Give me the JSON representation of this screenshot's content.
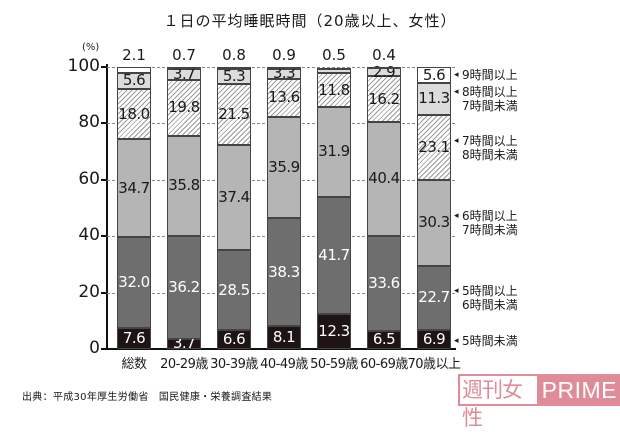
{
  "chart_data": {
    "type": "bar",
    "stacked": true,
    "title": "１日の平均睡眠時間（20歳以上、女性）",
    "unit_label": "(%)",
    "ylabel": "%",
    "xlabel": "",
    "ylim": [
      0,
      100
    ],
    "yticks": [
      "0",
      "20",
      "40",
      "60",
      "80",
      "100"
    ],
    "grid": true,
    "legend_position": "right",
    "categories": [
      "総数",
      "20-29歳",
      "30-39歳",
      "40-49歳",
      "50-59歳",
      "60-69歳",
      "70歳以上"
    ],
    "series": [
      {
        "name": "5時間未満",
        "legend_lines": [
          "5時間未満"
        ],
        "color": "#1e1414",
        "values": [
          7.6,
          3.7,
          6.6,
          8.1,
          12.3,
          6.5,
          6.9
        ]
      },
      {
        "name": "5時間以上6時間未満",
        "legend_lines": [
          "5時間以上",
          "6時間未満"
        ],
        "color": "#6e6e6e",
        "values": [
          32.0,
          36.2,
          28.5,
          38.3,
          41.7,
          33.6,
          22.7
        ]
      },
      {
        "name": "6時間以上7時間未満",
        "legend_lines": [
          "6時間以上",
          "7時間未満"
        ],
        "color": "#b5b5b5",
        "values": [
          34.7,
          35.8,
          37.4,
          35.9,
          31.9,
          40.4,
          30.3
        ]
      },
      {
        "name": "7時間以上8時間未満",
        "legend_lines": [
          "7時間以上",
          "8時間未満"
        ],
        "color": "hatched",
        "values": [
          18.0,
          19.8,
          21.5,
          13.6,
          11.8,
          16.2,
          23.1
        ]
      },
      {
        "name": "8時間以上7時間未満",
        "legend_lines": [
          "8時間以上",
          "7時間未満"
        ],
        "color": "#dcdcdc",
        "values": [
          5.6,
          3.7,
          5.3,
          3.3,
          1.6,
          2.9,
          11.3
        ]
      },
      {
        "name": "9時間以上",
        "legend_lines": [
          "9時間以上"
        ],
        "color": "#ffffff",
        "values": [
          2.1,
          0.7,
          0.8,
          0.9,
          0.5,
          0.4,
          5.6
        ]
      }
    ],
    "display_labels": [
      [
        "7.6",
        "32.0",
        "34.7",
        "18.0",
        "5.6",
        "2.1"
      ],
      [
        "3.7",
        "36.2",
        "35.8",
        "19.8",
        "3.7",
        "0.7"
      ],
      [
        "6.6",
        "28.5",
        "37.4",
        "21.5",
        "5.3",
        "0.8"
      ],
      [
        "8.1",
        "38.3",
        "35.9",
        "13.6",
        "3.3",
        "0.9"
      ],
      [
        "12.3",
        "41.7",
        "31.9",
        "11.8",
        "1.6",
        "0.5"
      ],
      [
        "6.5",
        "33.6",
        "40.4",
        "16.2",
        "2.9",
        "0.4"
      ],
      [
        "6.9",
        "22.7",
        "30.3",
        "23.1",
        "11.3",
        "5.6"
      ]
    ]
  },
  "footer": {
    "source": "出典：平成30年厚生労働省　国民健康・栄養調査結果"
  },
  "logo": {
    "jp_text": "週刊女性",
    "en_text": "PRIME",
    "color": "#df8c98"
  }
}
